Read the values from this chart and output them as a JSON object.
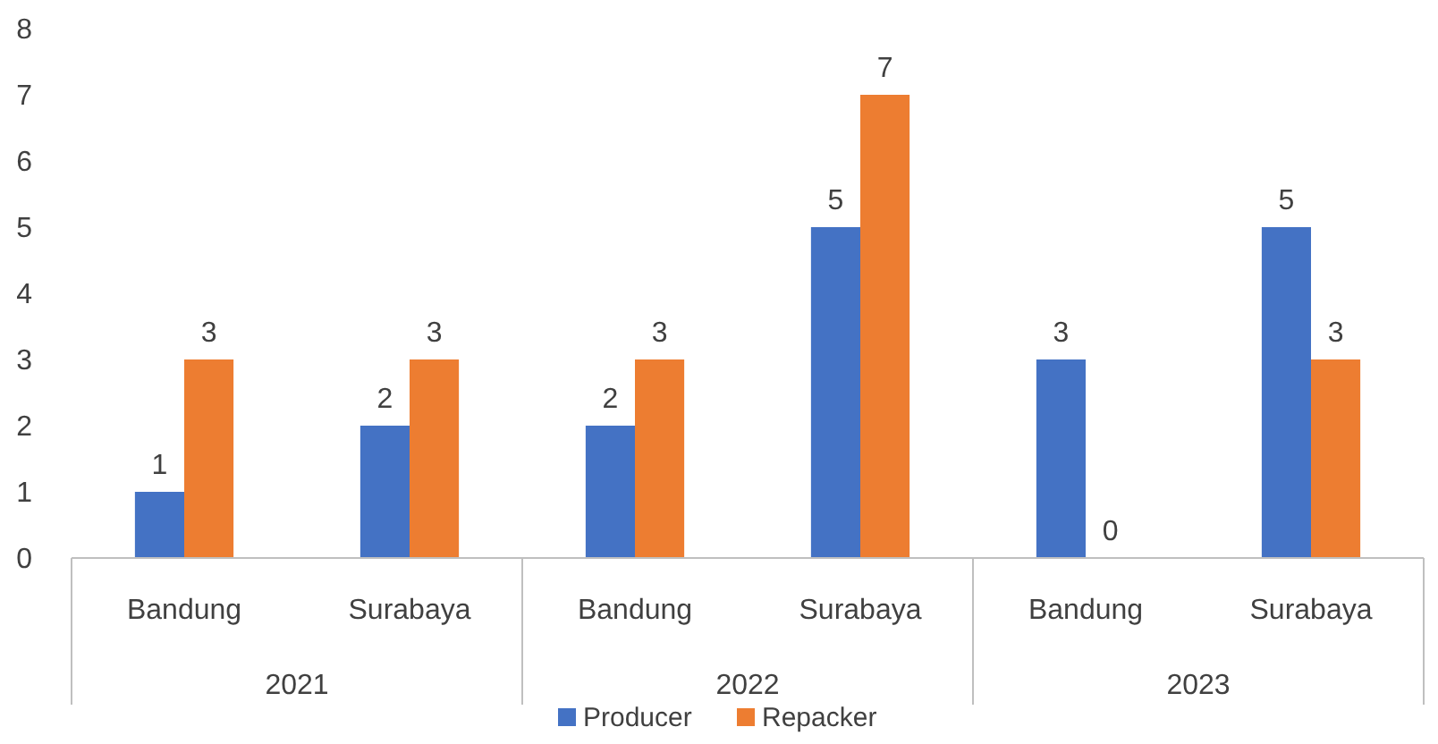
{
  "chart_data": {
    "type": "bar",
    "categories": [
      "Bandung",
      "Surabaya",
      "Bandung",
      "Surabaya",
      "Bandung",
      "Surabaya"
    ],
    "series": [
      {
        "name": "Producer",
        "color": "#4472c4",
        "values": [
          1,
          2,
          2,
          5,
          3,
          5
        ]
      },
      {
        "name": "Repacker",
        "color": "#ed7d31",
        "values": [
          3,
          3,
          3,
          7,
          0,
          3
        ]
      }
    ],
    "ylim": [
      0,
      8
    ],
    "yticks": [
      0,
      1,
      2,
      3,
      4,
      5,
      6,
      7,
      8
    ],
    "grid": false,
    "data_labels": true,
    "legend": "bottom",
    "annotations": [
      "2021",
      "2022",
      "2023"
    ]
  }
}
